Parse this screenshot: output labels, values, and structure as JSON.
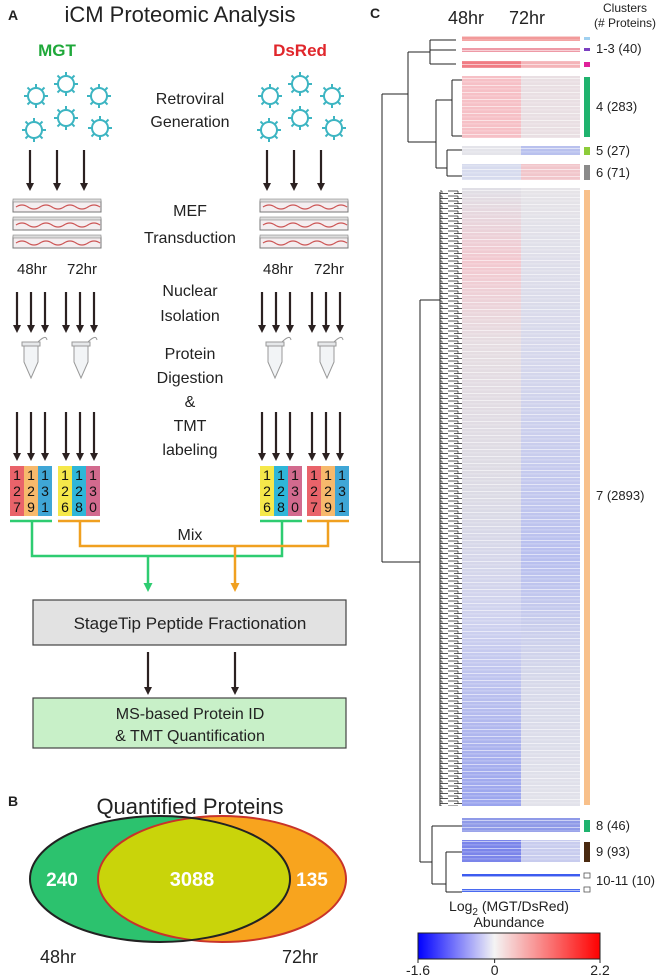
{
  "panel_a": {
    "letter": "A",
    "title": "iCM Proteomic Analysis",
    "left_group": "MGT",
    "right_group": "DsRed",
    "step1": [
      "Retroviral",
      "Generation"
    ],
    "step2": [
      "MEF",
      "Transduction"
    ],
    "timepoints_left": [
      "48hr",
      "72hr"
    ],
    "timepoints_right": [
      "48hr",
      "72hr"
    ],
    "step3": [
      "Nuclear",
      "Isolation"
    ],
    "step4": [
      "Protein",
      "Digestion",
      "&",
      "TMT",
      "labeling"
    ],
    "tmt_left": [
      {
        "label": "127",
        "color": "#e9636a"
      },
      {
        "label": "129",
        "color": "#f7b96c"
      },
      {
        "label": "131",
        "color": "#3fa6d6"
      },
      {
        "label": "126",
        "color": "#f5e84a"
      },
      {
        "label": "128",
        "color": "#2fb6d8"
      },
      {
        "label": "130",
        "color": "#d26a8e"
      }
    ],
    "tmt_right": [
      {
        "label": "126",
        "color": "#f5e84a"
      },
      {
        "label": "128",
        "color": "#2fb6d8"
      },
      {
        "label": "130",
        "color": "#d26a8e"
      },
      {
        "label": "127",
        "color": "#e9636a"
      },
      {
        "label": "129",
        "color": "#f7b96c"
      },
      {
        "label": "131",
        "color": "#3fa6d6"
      }
    ],
    "mix": "Mix",
    "fractionation": "StageTip Peptide Fractionation",
    "quantification": [
      "MS-based Protein ID",
      "& TMT Quantification"
    ]
  },
  "panel_b": {
    "letter": "B",
    "title": "Quantified Proteins",
    "only_48hr": 240,
    "both": 3088,
    "only_72hr": 135,
    "label_48hr": "48hr",
    "label_72hr": "72hr"
  },
  "panel_c": {
    "letter": "C",
    "columns": [
      "48hr",
      "72hr"
    ],
    "clusters_header": [
      "Clusters",
      "(# Proteins)"
    ],
    "clusters": [
      "1-3 (40)",
      "4 (283)",
      "5 (27)",
      "6 (71)",
      "7 (2893)",
      "8 (46)",
      "9 (93)",
      "10-11 (10)"
    ],
    "colorbar": {
      "title_log": "Log",
      "title_base": "2",
      "title_ratio": " (MGT/DsRed)",
      "title_line2": "Abundance",
      "lim": [
        -1.6,
        2.2
      ],
      "ticks": [
        -1.6,
        0,
        2.2
      ]
    }
  }
}
